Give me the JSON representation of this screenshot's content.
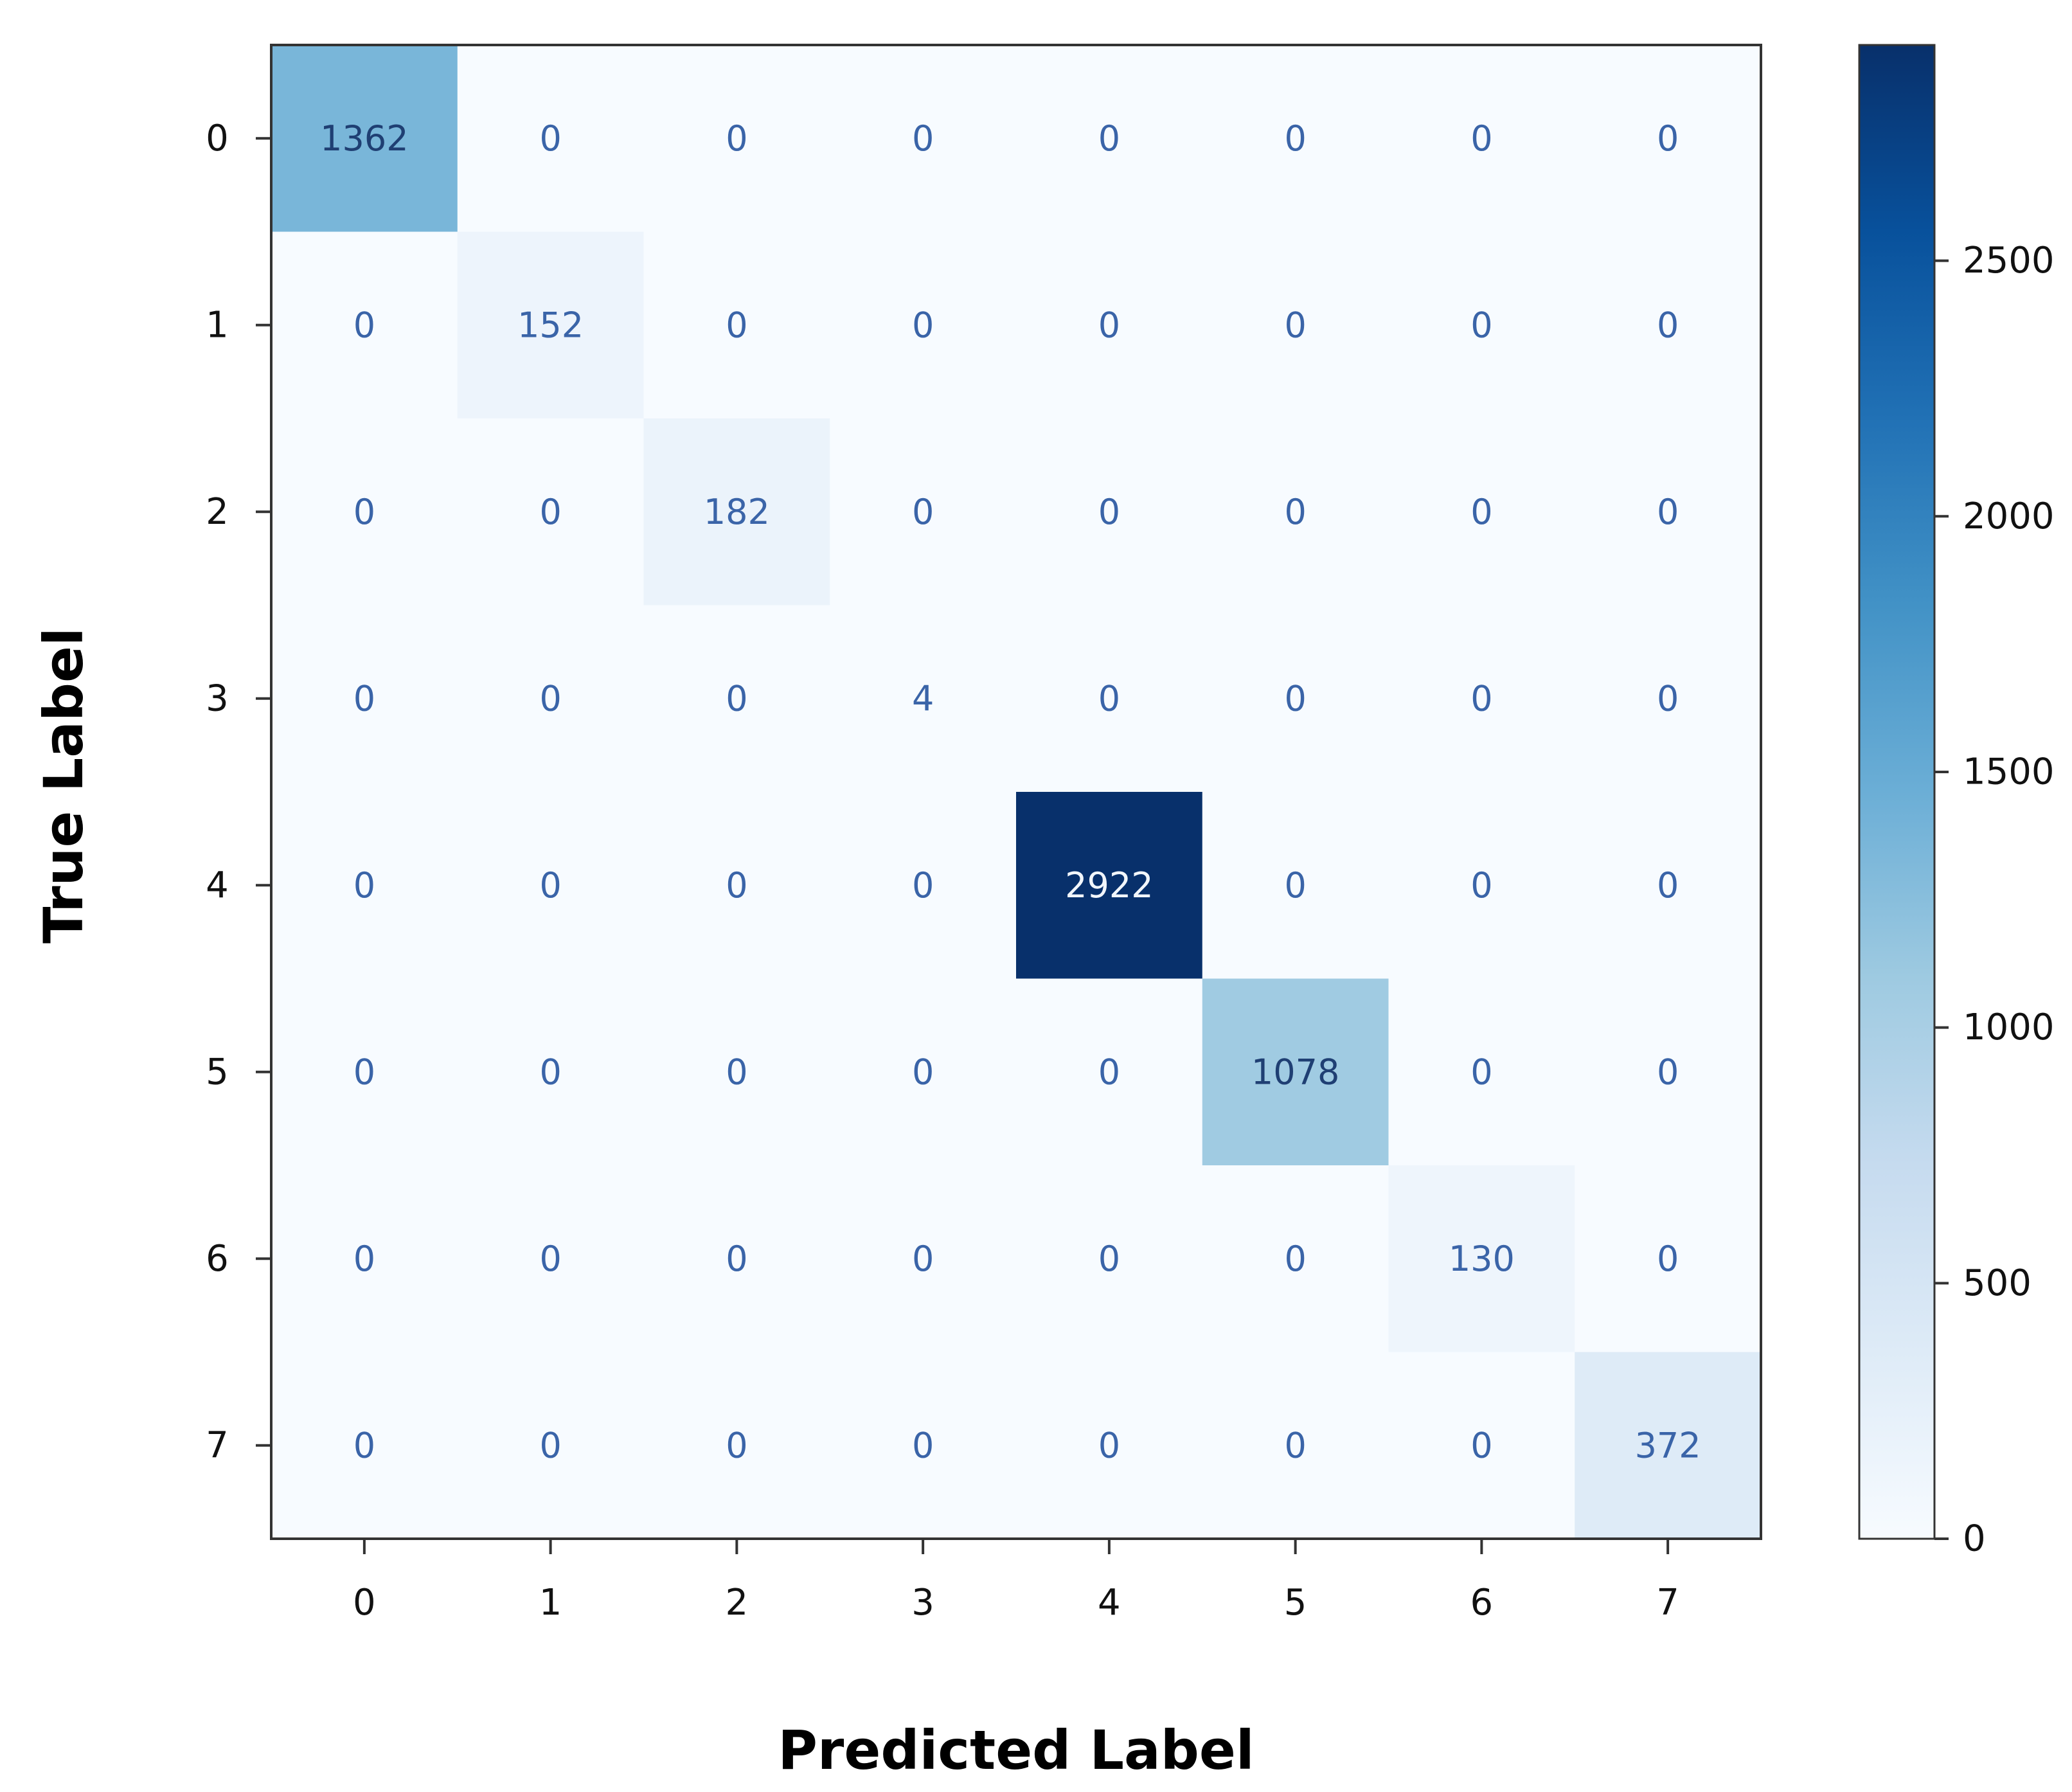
{
  "chart_data": {
    "type": "heatmap",
    "title": "",
    "xlabel": "Predicted Label",
    "ylabel": "True Label",
    "x_categories": [
      "0",
      "1",
      "2",
      "3",
      "4",
      "5",
      "6",
      "7"
    ],
    "y_categories": [
      "0",
      "1",
      "2",
      "3",
      "4",
      "5",
      "6",
      "7"
    ],
    "values": [
      [
        1362,
        0,
        0,
        0,
        0,
        0,
        0,
        0
      ],
      [
        0,
        152,
        0,
        0,
        0,
        0,
        0,
        0
      ],
      [
        0,
        0,
        182,
        0,
        0,
        0,
        0,
        0
      ],
      [
        0,
        0,
        0,
        4,
        0,
        0,
        0,
        0
      ],
      [
        0,
        0,
        0,
        0,
        2922,
        0,
        0,
        0
      ],
      [
        0,
        0,
        0,
        0,
        0,
        1078,
        0,
        0
      ],
      [
        0,
        0,
        0,
        0,
        0,
        0,
        130,
        0
      ],
      [
        0,
        0,
        0,
        0,
        0,
        0,
        0,
        372
      ]
    ],
    "colormap": "Blues",
    "colorbar": {
      "range": [
        0,
        2922
      ],
      "ticks": [
        0,
        500,
        1000,
        1500,
        2000,
        2500
      ]
    },
    "grid": false,
    "legend": "colorbar-right"
  }
}
